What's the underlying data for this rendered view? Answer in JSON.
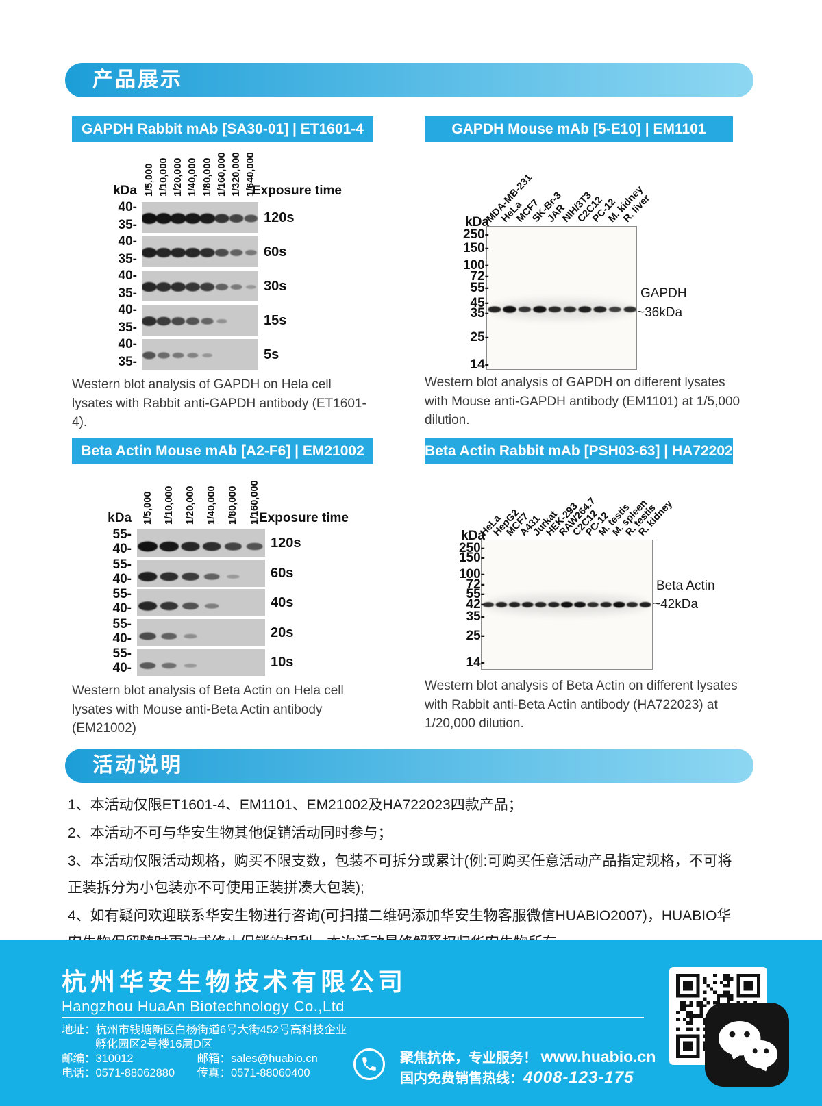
{
  "sections": {
    "products": "产品展示",
    "notes": "活动说明"
  },
  "panels": {
    "a": {
      "title": "GAPDH Rabbit mAb [SA30-01] | ET1601-4",
      "kda_label": "kDa",
      "exposure_header": "Exposure time",
      "lanes": [
        "1/5,000",
        "1/10,000",
        "1/20,000",
        "1/40,000",
        "1/80,000",
        "1/160,000",
        "1/320,000",
        "1/640,000"
      ],
      "marker_top": "40-",
      "marker_bottom": "35-",
      "strips": [
        {
          "exposure": "120s",
          "bands": [
            1,
            0.97,
            0.95,
            0.95,
            0.92,
            0.75,
            0.65,
            0.55
          ]
        },
        {
          "exposure": "60s",
          "bands": [
            0.9,
            0.85,
            0.85,
            0.85,
            0.8,
            0.6,
            0.45,
            0.3
          ]
        },
        {
          "exposure": "30s",
          "bands": [
            0.85,
            0.8,
            0.8,
            0.75,
            0.7,
            0.45,
            0.28,
            0.08
          ]
        },
        {
          "exposure": "15s",
          "bands": [
            0.8,
            0.7,
            0.62,
            0.55,
            0.42,
            0.12,
            0,
            0
          ]
        },
        {
          "exposure": "5s",
          "bands": [
            0.55,
            0.38,
            0.3,
            0.22,
            0.1,
            0,
            0,
            0
          ]
        }
      ],
      "caption": "Western blot analysis of GAPDH on Hela cell lysates with Rabbit anti-GAPDH antibody (ET1601-4)."
    },
    "b": {
      "title": "GAPDH Mouse mAb [5-E10] | EM1101",
      "kda_label": "kDa",
      "lanes": [
        "MDA-MB-231",
        "HeLa",
        "MCF7",
        "SK-Br-3",
        "JAR",
        "NIH/3T3",
        "C2C12",
        "PC-12",
        "M. kidney",
        "R. liver"
      ],
      "kda_marks": [
        "250-",
        "150-",
        "100-",
        "72-",
        "55-",
        "45-",
        "35-",
        "25-",
        "14-"
      ],
      "bands": [
        0.8,
        1,
        0.65,
        0.95,
        0.75,
        0.7,
        0.85,
        0.8,
        0.55,
        0.7
      ],
      "band_label_1": "GAPDH",
      "band_label_2": "~36kDa",
      "caption": "Western blot analysis of GAPDH on different lysates with Mouse anti-GAPDH antibody (EM1101) at 1/5,000 dilution."
    },
    "c": {
      "title": "Beta Actin Mouse mAb [A2-F6] | EM21002",
      "kda_label": "kDa",
      "exposure_header": "Exposure time",
      "lanes": [
        "1/5,000",
        "1/10,000",
        "1/20,000",
        "1/40,000",
        "1/80,000",
        "1/160,000"
      ],
      "marker_top": "55-",
      "marker_bottom": "40-",
      "strips": [
        {
          "exposure": "120s",
          "bands": [
            1,
            0.95,
            0.85,
            0.8,
            0.65,
            0.55
          ]
        },
        {
          "exposure": "60s",
          "bands": [
            0.9,
            0.8,
            0.7,
            0.45,
            0.08,
            0
          ]
        },
        {
          "exposure": "40s",
          "bands": [
            0.85,
            0.75,
            0.55,
            0.25,
            0,
            0
          ]
        },
        {
          "exposure": "20s",
          "bands": [
            0.6,
            0.45,
            0.15,
            0,
            0,
            0
          ]
        },
        {
          "exposure": "10s",
          "bands": [
            0.5,
            0.35,
            0.08,
            0,
            0,
            0
          ]
        }
      ],
      "caption": "Western blot analysis of Beta Actin on Hela cell lysates with Mouse anti-Beta Actin antibody (EM21002)"
    },
    "d": {
      "title": "Beta Actin Rabbit mAb [PSH03-63] | HA722023",
      "kda_label": "kDa",
      "lanes": [
        "HeLa",
        "HepG2",
        "MCF7",
        "A431",
        "Jurkat",
        "HEK-293",
        "RAW264.7",
        "C2C12",
        "PC-12",
        "M. testis",
        "M. spleen",
        "R. testis",
        "R. kidney"
      ],
      "kda_marks": [
        "250-",
        "150-",
        "100-",
        "72-",
        "55-",
        "42-",
        "35-",
        "25-",
        "14-"
      ],
      "bands": [
        0.7,
        0.8,
        0.8,
        0.85,
        0.8,
        0.8,
        1,
        0.95,
        0.7,
        0.8,
        1,
        0.75,
        0.85
      ],
      "band_label_1": "Beta Actin",
      "band_label_2": "~42kDa",
      "caption": "Western blot analysis of Beta Actin on different lysates with Rabbit anti-Beta Actin antibody (HA722023) at 1/20,000 dilution."
    }
  },
  "notes": [
    "1、本活动仅限ET1601-4、EM1101、EM21002及HA722023四款产品；",
    "2、本活动不可与华安生物其他促销活动同时参与；",
    "3、本活动仅限活动规格，购买不限支数，包装不可拆分或累计(例:可购买任意活动产品指定规格，不可将正装拆分为小包装亦不可使用正装拼凑大包装);",
    "4、如有疑问欢迎联系华安生物进行咨询(可扫描二维码添加华安生物客服微信HUABIO2007)，HUABIO华安生物保留随时更改或终止促销的权利，本次活动最终解释权归华安生物所有。"
  ],
  "footer": {
    "company_zh": "杭州华安生物技术有限公司",
    "company_en": "Hangzhou HuaAn Biotechnology Co.,Ltd",
    "address_label": "地址：",
    "address_line1": "杭州市钱塘新区白杨街道6号大街452号高科技企业",
    "address_line2": "孵化园区2号楼16层D区",
    "zip_label": "邮编：",
    "zip": "310012",
    "email_label": "邮箱：",
    "email": "sales@huabio.cn",
    "tel_label": "电话：",
    "tel": "0571-88062880",
    "fax_label": "传真：",
    "fax": "0571-88060400",
    "slogan": "聚焦抗体，专业服务！",
    "website": "www.huabio.cn",
    "hotline_label": "国内免费销售热线：",
    "hotline": "4008-123-175"
  },
  "colors": {
    "banner_gradient_start": "#1d9ed8",
    "banner_gradient_end": "#8ed7f2",
    "panel_title_bg": "#25a9e0",
    "footer_bg": "#17b0e6",
    "strip_bg": "#c9c9c9"
  }
}
